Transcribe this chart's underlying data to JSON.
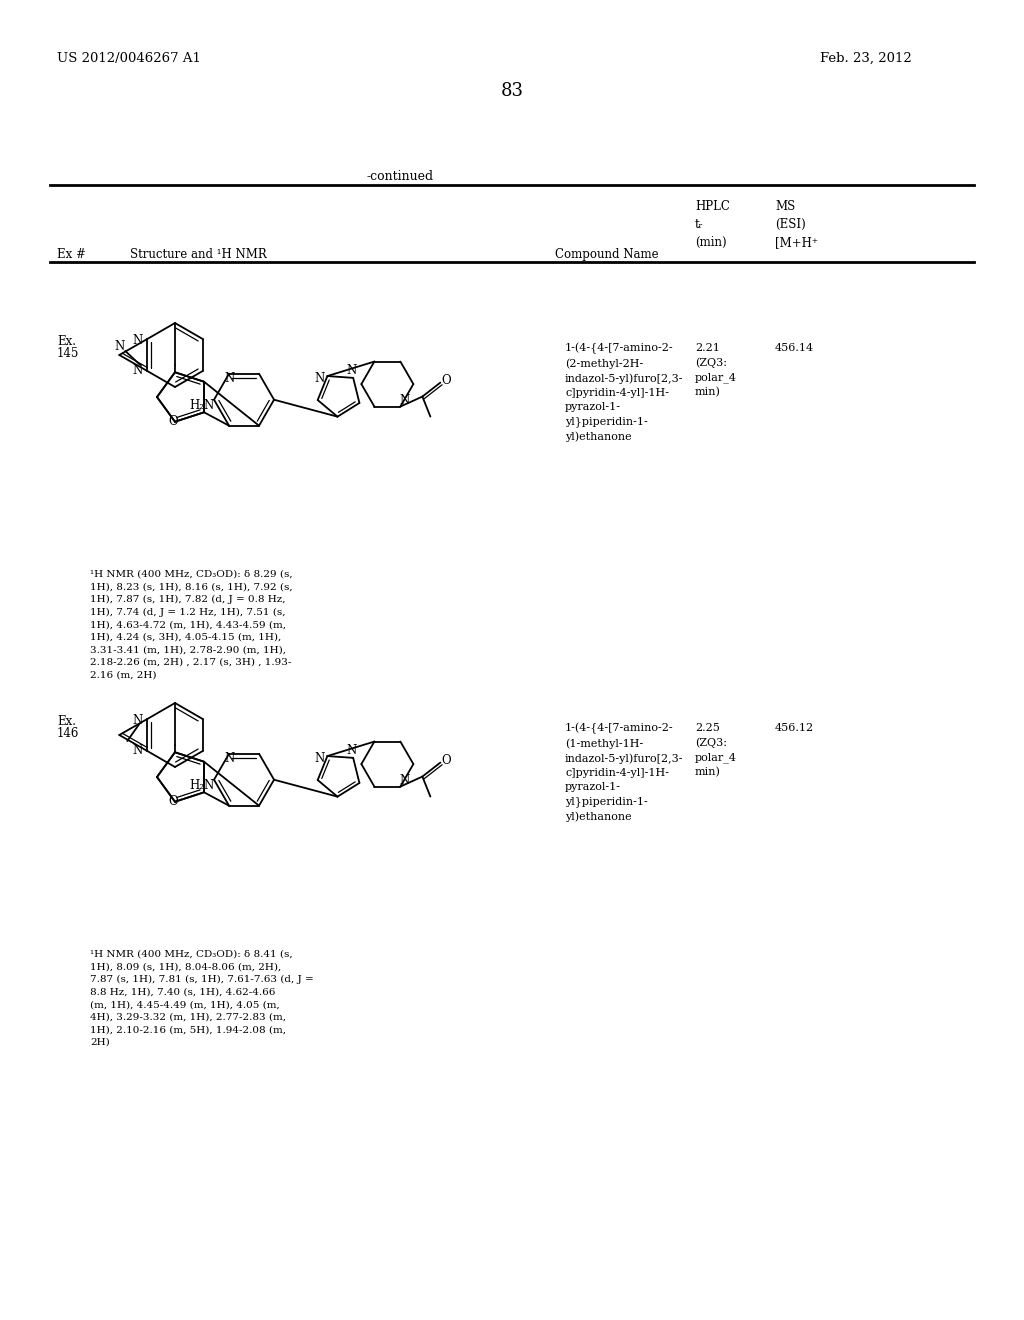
{
  "page_number": "83",
  "patent_number": "US 2012/0046267 A1",
  "patent_date": "Feb. 23, 2012",
  "continued_label": "-continued",
  "col1": "Ex #",
  "col2": "Structure and ¹H NMR",
  "col3": "Compound Name",
  "col4_l1": "HPLC",
  "col4_l2": "tᵣ",
  "col4_l3": "(min)",
  "col5_l1": "MS",
  "col5_l2": "(ESI)",
  "col5_l3": "[M+H⁺",
  "ex145_label1": "Ex.",
  "ex145_label2": "145",
  "ex145_name": "1-(4-{4-[7-amino-2-\n(2-methyl-2H-\nindazol-5-yl)furo[2,3-\nc]pyridin-4-yl]-1H-\npyrazol-1-\nyl}piperidin-1-\nyl)ethanone",
  "ex145_hplc": "2.21\n(ZQ3:\npolar_4\nmin)",
  "ex145_ms": "456.14",
  "ex145_nmr": "¹H NMR (400 MHz, CD₃OD): δ 8.29 (s,\n1H), 8.23 (s, 1H), 8.16 (s, 1H), 7.92 (s,\n1H), 7.87 (s, 1H), 7.82 (d, J = 0.8 Hz,\n1H), 7.74 (d, J = 1.2 Hz, 1H), 7.51 (s,\n1H), 4.63-4.72 (m, 1H), 4.43-4.59 (m,\n1H), 4.24 (s, 3H), 4.05-4.15 (m, 1H),\n3.31-3.41 (m, 1H), 2.78-2.90 (m, 1H),\n2.18-2.26 (m, 2H) , 2.17 (s, 3H) , 1.93-\n2.16 (m, 2H)",
  "ex146_label1": "Ex.",
  "ex146_label2": "146",
  "ex146_name": "1-(4-{4-[7-amino-2-\n(1-methyl-1H-\nindazol-5-yl)furo[2,3-\nc]pyridin-4-yl]-1H-\npyrazol-1-\nyl}piperidin-1-\nyl)ethanone",
  "ex146_hplc": "2.25\n(ZQ3:\npolar_4\nmin)",
  "ex146_ms": "456.12",
  "ex146_nmr": "¹H NMR (400 MHz, CD₃OD): δ 8.41 (s,\n1H), 8.09 (s, 1H), 8.04-8.06 (m, 2H),\n7.87 (s, 1H), 7.81 (s, 1H), 7.61-7.63 (d, J =\n8.8 Hz, 1H), 7.40 (s, 1H), 4.62-4.66\n(m, 1H), 4.45-4.49 (m, 1H), 4.05 (m,\n4H), 3.29-3.32 (m, 1H), 2.77-2.83 (m,\n1H), 2.10-2.16 (m, 5H), 1.94-2.08 (m,\n2H)",
  "bg": "#ffffff"
}
